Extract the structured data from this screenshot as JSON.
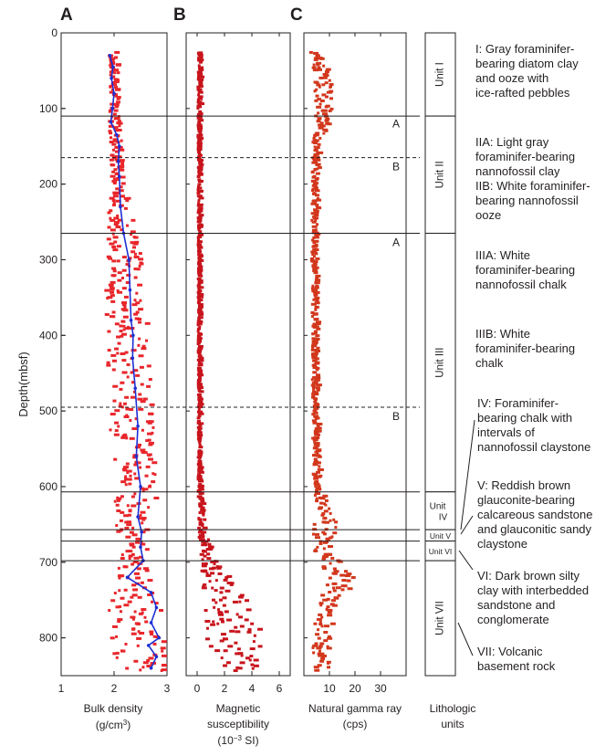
{
  "panel_labels": [
    "A",
    "B",
    "C"
  ],
  "y_axis": {
    "label": "Depth(mbsf)",
    "ticks": [
      0,
      100,
      200,
      300,
      400,
      500,
      600,
      700,
      800
    ],
    "range": [
      0,
      850
    ]
  },
  "boundaries": {
    "solid": [
      110,
      265,
      607,
      657,
      672,
      698
    ],
    "dashed": [
      165,
      495
    ]
  },
  "subunit_marks": [
    {
      "text": "A",
      "depth": 125
    },
    {
      "text": "B",
      "depth": 182
    },
    {
      "text": "A",
      "depth": 282
    },
    {
      "text": "B",
      "depth": 512
    }
  ],
  "panels": [
    {
      "id": "A",
      "label": "Bulk density",
      "unit_line": "(g/cm",
      "unit_sup": "3",
      "unit_end": ")",
      "ticks": [
        "1",
        "2",
        "3"
      ],
      "xlim": [
        1,
        3
      ]
    },
    {
      "id": "B",
      "label": "Magnetic",
      "unit_line1": "susceptibility",
      "unit_pre": "(10",
      "unit_sup": "−3",
      "unit_end": " SI)",
      "ticks": [
        "0",
        "2",
        "4",
        "6"
      ],
      "xlim": [
        -0.8,
        6.8
      ]
    },
    {
      "id": "C",
      "label": "Natural gamma ray",
      "unit_line": "(cps)",
      "ticks": [
        "10",
        "20",
        "30"
      ],
      "xlim": [
        0,
        40
      ]
    }
  ],
  "units_column": {
    "label_line1": "Lithologic",
    "label_line2": "units",
    "units": [
      {
        "name": "Unit I",
        "top": 0,
        "bottom": 110
      },
      {
        "name": "Unit II",
        "top": 110,
        "bottom": 265
      },
      {
        "name": "Unit III",
        "top": 265,
        "bottom": 607
      },
      {
        "name": "Unit IV",
        "top": 607,
        "bottom": 657,
        "stacked": [
          "Unit",
          "IV"
        ]
      },
      {
        "name": "Unit V",
        "top": 657,
        "bottom": 672
      },
      {
        "name": "Unit VI",
        "top": 672,
        "bottom": 698
      },
      {
        "name": "Unit VII",
        "top": 698,
        "bottom": 850
      }
    ]
  },
  "descriptions": [
    {
      "lines": [
        "I: Gray foraminifer-",
        "bearing diatom clay",
        "and ooze with",
        "ice-rafted pebbles"
      ]
    },
    {
      "lines": [
        "IIA: Light gray",
        "foraminifer-bearing",
        "nannofossil clay"
      ]
    },
    {
      "lines": [
        "IIB: White foraminifer-",
        "bearing nannofossil",
        "ooze"
      ]
    },
    {
      "lines": [
        "IIIA: White",
        "foraminifer-bearing",
        "nannofossil chalk"
      ]
    },
    {
      "lines": [
        "IIIB: White",
        "foraminifer-bearing",
        "chalk"
      ]
    },
    {
      "lines": [
        "IV: Foraminifer-",
        "bearing chalk with",
        "intervals of",
        "nannofossil claystone"
      ]
    },
    {
      "lines": [
        "V: Reddish brown",
        "glauconite-bearing",
        "calcareous sandstone",
        "and glauconitic sandy",
        "claystone"
      ]
    },
    {
      "lines": [
        "VI: Dark brown silty",
        "clay with interbedded",
        "sandstone and",
        "conglomerate"
      ]
    },
    {
      "lines": [
        "VII: Volcanic",
        "basement rock"
      ]
    }
  ],
  "colors": {
    "density_points": "#e8262b",
    "density_line": "#1d2fd4",
    "mag_points": "#c8141c",
    "gamma_points": "#d2371c",
    "ink": "#231f20"
  },
  "chart_data": [
    {
      "type": "scatter",
      "panel": "A",
      "xlabel": "Bulk density (g/cm3)",
      "ylabel": "Depth(mbsf)",
      "xlim": [
        1,
        3
      ],
      "ylim": [
        850,
        0
      ],
      "series": [
        {
          "values_note": "points",
          "profile": [
            [
              25,
              1.95,
              0.08
            ],
            [
              60,
              1.98,
              0.08
            ],
            [
              100,
              1.97,
              0.1
            ],
            [
              150,
              2.02,
              0.12
            ],
            [
              200,
              2.06,
              0.15
            ],
            [
              265,
              2.1,
              0.3
            ],
            [
              300,
              2.15,
              0.35
            ],
            [
              400,
              2.22,
              0.4
            ],
            [
              500,
              2.28,
              0.45
            ],
            [
              600,
              2.38,
              0.4
            ],
            [
              700,
              2.3,
              0.25
            ],
            [
              760,
              2.35,
              0.5
            ],
            [
              850,
              2.4,
              0.55
            ]
          ]
        },
        {
          "values_note": "line",
          "x": [
            1.92,
            1.98,
            1.95,
            2.0,
            1.97,
            1.94,
            2.05,
            2.1,
            2.08,
            2.1,
            2.12,
            2.18,
            2.28,
            2.3,
            2.32,
            2.36,
            2.35,
            2.4,
            2.45,
            2.42,
            2.5,
            2.45,
            2.52,
            2.5,
            2.55,
            2.25,
            2.7,
            2.8,
            2.7,
            2.85,
            2.65,
            2.8,
            2.7
          ],
          "y": [
            30,
            45,
            60,
            80,
            100,
            118,
            135,
            150,
            170,
            190,
            230,
            265,
            300,
            340,
            380,
            400,
            430,
            470,
            520,
            560,
            600,
            640,
            660,
            680,
            698,
            720,
            740,
            760,
            780,
            800,
            810,
            825,
            840
          ]
        }
      ]
    },
    {
      "type": "scatter",
      "panel": "B",
      "xlabel": "Magnetic susceptibility (10^-3 SI)",
      "ylabel": "Depth(mbsf)",
      "xlim": [
        -0.8,
        6.8
      ],
      "ylim": [
        850,
        0
      ],
      "series": [
        {
          "profile": [
            [
              25,
              0.05,
              0.1
            ],
            [
              300,
              0.03,
              0.06
            ],
            [
              600,
              0.05,
              0.08
            ],
            [
              660,
              0.3,
              0.3
            ],
            [
              700,
              0.8,
              0.6
            ],
            [
              740,
              1.8,
              1.5
            ],
            [
              800,
              2.8,
              2.2
            ],
            [
              840,
              2.5,
              1.8
            ]
          ]
        }
      ]
    },
    {
      "type": "scatter",
      "panel": "C",
      "xlabel": "Natural gamma ray (cps)",
      "ylabel": "Depth(mbsf)",
      "xlim": [
        0,
        40
      ],
      "ylim": [
        850,
        0
      ],
      "series": [
        {
          "profile": [
            [
              25,
              4,
              2
            ],
            [
              50,
              6,
              3
            ],
            [
              90,
              8,
              4
            ],
            [
              120,
              7,
              3
            ],
            [
              150,
              4,
              1.5
            ],
            [
              300,
              3.5,
              1
            ],
            [
              500,
              4,
              1.2
            ],
            [
              600,
              4.5,
              1.5
            ],
            [
              650,
              8,
              5
            ],
            [
              680,
              6,
              3
            ],
            [
              720,
              14,
              6
            ],
            [
              760,
              8,
              4
            ],
            [
              800,
              6,
              3
            ],
            [
              840,
              6,
              3
            ]
          ]
        }
      ]
    }
  ]
}
